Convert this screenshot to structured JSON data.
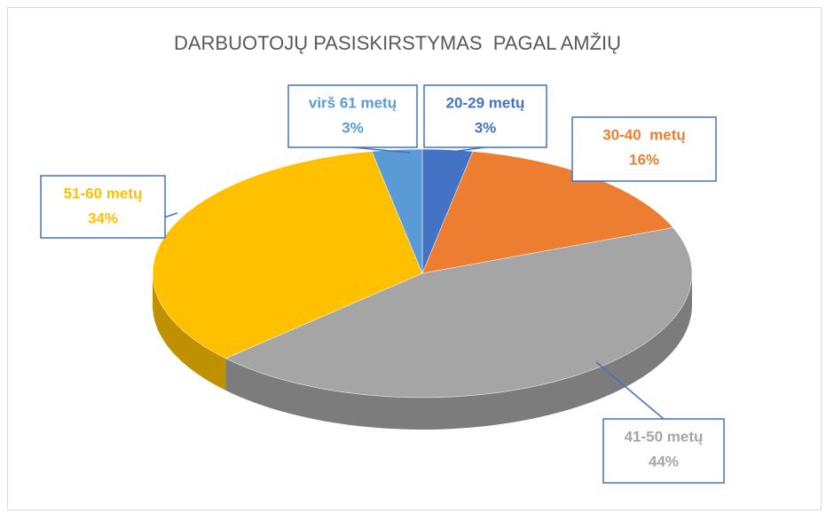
{
  "chart_data": {
    "type": "pie3d",
    "title": "DARBUOTOJŲ PASISKIRSTYMAS  PAGAL AMŽIŲ",
    "categories": [
      "20-29 metų",
      "30-40  metų",
      "41-50 metų",
      "51-60 metų",
      "virš 61 metų"
    ],
    "values": [
      3,
      16,
      44,
      34,
      3
    ],
    "value_labels": [
      "3%",
      "16%",
      "44%",
      "34%",
      "3%"
    ],
    "colors": [
      "#4472c4",
      "#ed7d31",
      "#a5a5a5",
      "#ffc000",
      "#5b9bd5"
    ]
  }
}
